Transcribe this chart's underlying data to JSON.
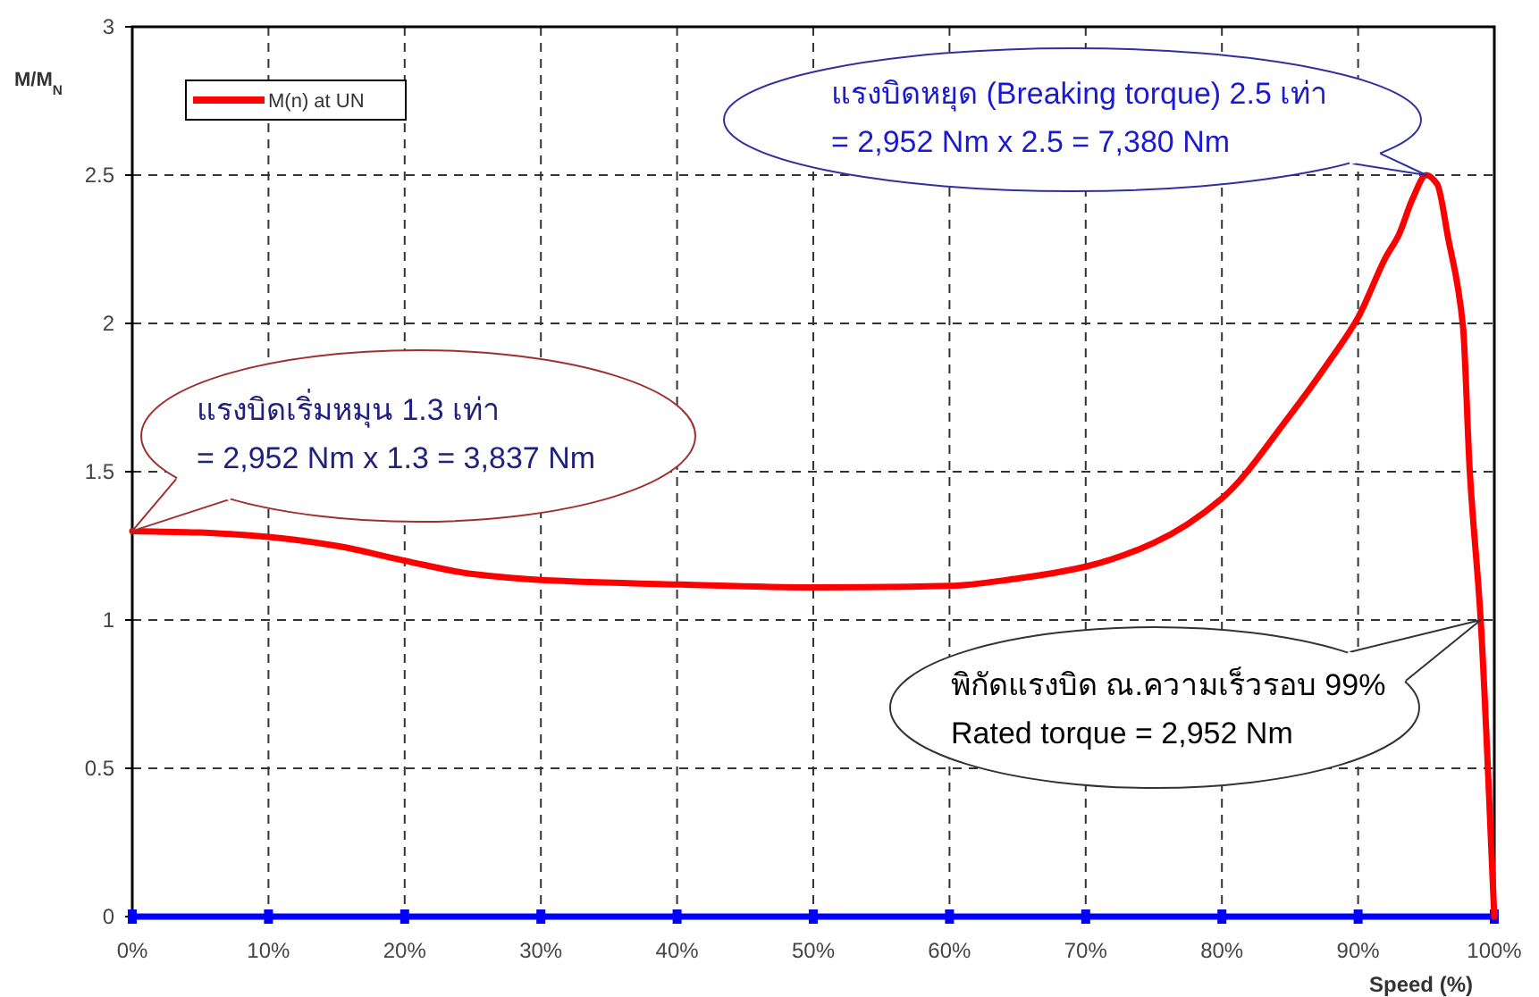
{
  "chart_data": {
    "type": "line",
    "xlabel": "Speed (%)",
    "ylabel": "M/M$_{N}$",
    "xlim": [
      0,
      100
    ],
    "ylim": [
      0,
      3
    ],
    "xticks": [
      {
        "value": 0,
        "label": "0%"
      },
      {
        "value": 10,
        "label": "10%"
      },
      {
        "value": 20,
        "label": "20%"
      },
      {
        "value": 30,
        "label": "30%"
      },
      {
        "value": 40,
        "label": "40%"
      },
      {
        "value": 50,
        "label": "50%"
      },
      {
        "value": 60,
        "label": "60%"
      },
      {
        "value": 70,
        "label": "70%"
      },
      {
        "value": 80,
        "label": "80%"
      },
      {
        "value": 90,
        "label": "90%"
      },
      {
        "value": 100,
        "label": "100%"
      }
    ],
    "yticks": [
      0,
      0.5,
      1,
      1.5,
      2,
      2.5,
      3
    ],
    "grid": true,
    "legend": "top left",
    "line_style": "solid",
    "series": [
      {
        "name": "M(n) at UN",
        "color": "#ff0000",
        "marker": "none",
        "x": [
          0,
          5,
          10,
          15,
          20,
          25,
          30,
          40,
          50,
          60,
          65,
          70,
          75,
          80,
          85,
          88,
          90,
          92,
          93,
          94,
          95,
          95.8,
          96.6,
          97.7,
          98.2,
          99,
          100
        ],
        "values": [
          1.3,
          1.295,
          1.28,
          1.25,
          1.2,
          1.155,
          1.135,
          1.12,
          1.11,
          1.115,
          1.14,
          1.18,
          1.26,
          1.41,
          1.69,
          1.88,
          2.02,
          2.22,
          2.3,
          2.42,
          2.5,
          2.47,
          2.29,
          1.99,
          1.5,
          1.0,
          0
        ]
      },
      {
        "color": "#0000ff",
        "marker": "square",
        "x": [
          0,
          10,
          20,
          30,
          40,
          50,
          60,
          70,
          80,
          90,
          100
        ],
        "values": [
          0,
          0,
          0,
          0,
          0,
          0,
          0,
          0,
          0,
          0,
          0
        ]
      }
    ],
    "annotations": [
      {
        "text": "แรงบิดเริ่มหมุน 1.3 เท่า\n= 2,952 Nm x 1.3 = 3,837 Nm",
        "x": 0,
        "y": 1.3
      },
      {
        "text": "แรงบิดหยุด (Breaking torque) 2.5 เท่า\n= 2,952 Nm x 2.5 = 7,380 Nm",
        "x": 95,
        "y": 2.5
      },
      {
        "text": "พิกัดแรงบิด ณ.ความเร็วรอบ 99%\nRated torque = 2,952 Nm",
        "x": 99,
        "y": 1
      }
    ]
  }
}
